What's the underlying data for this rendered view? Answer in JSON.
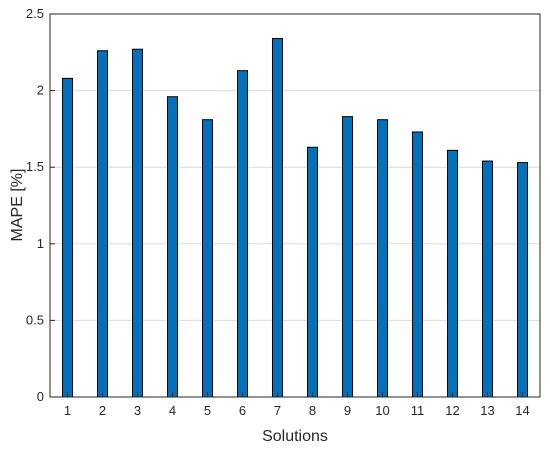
{
  "chart_data": {
    "type": "bar",
    "title": "",
    "xlabel": "Solutions",
    "ylabel": "MAPE [%]",
    "categories": [
      "1",
      "2",
      "3",
      "4",
      "5",
      "6",
      "7",
      "8",
      "9",
      "10",
      "11",
      "12",
      "13",
      "14"
    ],
    "values": [
      2.08,
      2.26,
      2.27,
      1.96,
      1.81,
      2.13,
      2.34,
      1.63,
      1.83,
      1.81,
      1.73,
      1.61,
      1.54,
      1.53
    ],
    "ylim": [
      0,
      2.5
    ],
    "yticks": [
      "0",
      "0.5",
      "1",
      "1.5",
      "2",
      "2.5"
    ],
    "grid": "horizontal",
    "bar_color": "#0072bd",
    "bar_edge_color": "#000000"
  }
}
